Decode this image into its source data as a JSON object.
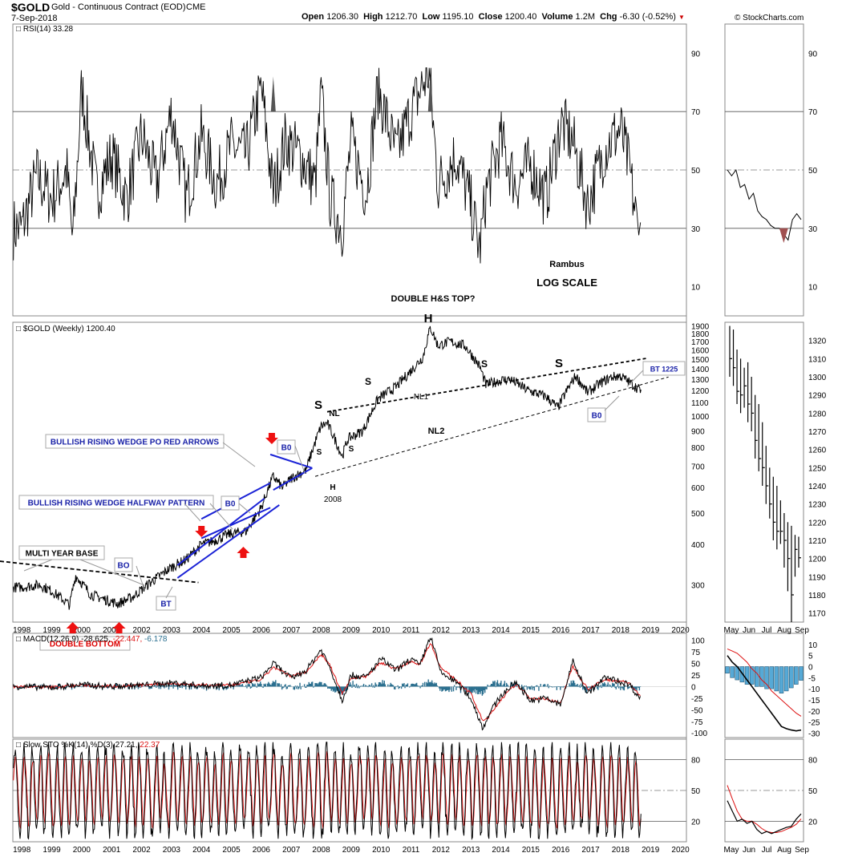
{
  "header": {
    "symbol": "$GOLD",
    "name": "Gold - Continuous Contract (EOD)",
    "exchange": "CME",
    "date": "7-Sep-2018",
    "open_label": "Open",
    "open": "1206.30",
    "high_label": "High",
    "high": "1212.70",
    "low_label": "Low",
    "low": "1195.10",
    "close_label": "Close",
    "close": "1200.40",
    "volume_label": "Volume",
    "volume": "1.2M",
    "chg_label": "Chg",
    "chg": "-6.30 (-0.52%)",
    "watermark": "© StockCharts.com"
  },
  "colors": {
    "price": "#000000",
    "trendline_blue": "#1a22d6",
    "arrow_red": "#ee1111",
    "macd_signal": "#dd1111",
    "macd_hist": "#2a6f8f",
    "hist_light": "#56a9d6",
    "rsi_fill": "#555555",
    "annotation_blue": "#1a22a8",
    "grid": "#999999"
  },
  "chart_data": [
    {
      "type": "line",
      "panel": "rsi",
      "title": "RSI(14) 33.28",
      "series_name": "RSI(14)",
      "last_value": 33.28,
      "ylim": [
        0,
        100
      ],
      "y_ticks": [
        10,
        30,
        50,
        70,
        90
      ],
      "reference_lines": [
        30,
        50,
        70
      ],
      "x": [
        1998.0,
        1998.5,
        1999.0,
        1999.5,
        1999.7,
        2000.0,
        2000.5,
        2001.0,
        2001.5,
        2002.0,
        2002.5,
        2003.0,
        2003.5,
        2004.0,
        2004.5,
        2005.0,
        2005.5,
        2006.0,
        2006.4,
        2006.8,
        2007.3,
        2007.8,
        2008.0,
        2008.3,
        2008.7,
        2009.0,
        2009.5,
        2009.9,
        2010.5,
        2011.0,
        2011.6,
        2011.9,
        2012.5,
        2013.0,
        2013.3,
        2013.5,
        2014.0,
        2014.5,
        2015.0,
        2015.5,
        2016.0,
        2016.4,
        2016.9,
        2017.5,
        2018.0,
        2018.3,
        2018.6,
        2018.68
      ],
      "values": [
        30,
        48,
        40,
        50,
        25,
        78,
        42,
        55,
        40,
        62,
        45,
        70,
        40,
        62,
        45,
        58,
        55,
        78,
        42,
        60,
        55,
        45,
        76,
        40,
        30,
        60,
        42,
        78,
        55,
        70,
        84,
        45,
        55,
        38,
        22,
        42,
        60,
        45,
        52,
        40,
        66,
        60,
        38,
        58,
        64,
        50,
        27,
        33.28
      ]
    },
    {
      "type": "line",
      "panel": "price",
      "title": "$GOLD (Weekly) 1200.40",
      "series_name": "$GOLD (Weekly)",
      "last_value": 1200.4,
      "scale": "log",
      "ylim": [
        230,
        1950
      ],
      "y_ticks": [
        300,
        400,
        500,
        600,
        700,
        800,
        900,
        1000,
        1100,
        1200,
        1300,
        1400,
        1500,
        1600,
        1700,
        1800,
        1900
      ],
      "x_ticks": [
        1998,
        1999,
        2000,
        2001,
        2002,
        2003,
        2004,
        2005,
        2006,
        2007,
        2008,
        2009,
        2010,
        2011,
        2012,
        2013,
        2014,
        2015,
        2016,
        2017,
        2018,
        2019,
        2020
      ],
      "x": [
        1998.0,
        1998.6,
        1999.0,
        1999.6,
        1999.8,
        2000.3,
        2000.8,
        2001.2,
        2001.7,
        2002.0,
        2002.5,
        2003.0,
        2003.5,
        2004.0,
        2004.4,
        2004.9,
        2005.5,
        2006.0,
        2006.4,
        2006.7,
        2007.0,
        2007.5,
        2008.0,
        2008.2,
        2008.7,
        2008.9,
        2009.4,
        2009.9,
        2010.5,
        2011.0,
        2011.4,
        2011.65,
        2011.9,
        2012.3,
        2012.8,
        2013.3,
        2013.5,
        2014.0,
        2014.3,
        2014.9,
        2015.5,
        2015.9,
        2016.5,
        2016.9,
        2017.3,
        2017.7,
        2018.0,
        2018.4,
        2018.68
      ],
      "values": [
        295,
        300,
        287,
        260,
        320,
        280,
        270,
        262,
        275,
        290,
        315,
        340,
        360,
        400,
        410,
        430,
        440,
        520,
        650,
        600,
        640,
        680,
        930,
        950,
        750,
        850,
        900,
        1130,
        1230,
        1380,
        1520,
        1880,
        1650,
        1700,
        1650,
        1420,
        1250,
        1290,
        1300,
        1200,
        1150,
        1060,
        1330,
        1180,
        1260,
        1320,
        1330,
        1250,
        1200.4
      ]
    },
    {
      "type": "line",
      "panel": "macd",
      "title": "MACD(12,26,9) -28.625, -22.447, -6.178",
      "macd_value": -28.625,
      "signal_value": -22.447,
      "hist_value": -6.178,
      "ylim": [
        -110,
        115
      ],
      "y_ticks": [
        -100,
        -75,
        -50,
        -25,
        0,
        25,
        50,
        75,
        100
      ],
      "x": [
        1998.0,
        1999.0,
        2000.0,
        2001.0,
        2002.0,
        2003.0,
        2004.0,
        2005.0,
        2006.0,
        2006.4,
        2007.0,
        2007.5,
        2008.0,
        2008.3,
        2008.7,
        2009.0,
        2009.5,
        2010.0,
        2010.5,
        2011.0,
        2011.3,
        2011.65,
        2012.0,
        2012.5,
        2013.0,
        2013.4,
        2013.6,
        2014.0,
        2014.5,
        2015.0,
        2015.5,
        2016.0,
        2016.4,
        2016.9,
        2017.5,
        2018.0,
        2018.3,
        2018.68
      ],
      "macd": [
        0,
        -2,
        4,
        0,
        3,
        8,
        2,
        3,
        20,
        50,
        18,
        35,
        80,
        40,
        -30,
        25,
        20,
        60,
        35,
        60,
        45,
        110,
        30,
        10,
        -25,
        -90,
        -60,
        -20,
        10,
        -30,
        -25,
        -40,
        55,
        -15,
        20,
        10,
        5,
        -28.625
      ],
      "signal": [
        0,
        -1,
        3,
        1,
        3,
        7,
        3,
        3,
        15,
        42,
        22,
        32,
        70,
        45,
        -15,
        18,
        22,
        52,
        38,
        55,
        48,
        95,
        40,
        15,
        -15,
        -75,
        -65,
        -28,
        5,
        -25,
        -27,
        -35,
        45,
        -5,
        15,
        12,
        7,
        -22.447
      ]
    },
    {
      "type": "line",
      "panel": "stochastic",
      "title": "Slow STO %K(14) %D(3) 27.21, 22.37",
      "k_value": 27.21,
      "d_value": 22.37,
      "ylim": [
        0,
        100
      ],
      "y_ticks": [
        20,
        50,
        80
      ],
      "reference_lines": [
        20,
        50,
        80
      ],
      "x_ticks": [
        1998,
        1999,
        2000,
        2001,
        2002,
        2003,
        2004,
        2005,
        2006,
        2007,
        2008,
        2009,
        2010,
        2011,
        2012,
        2013,
        2014,
        2015,
        2016,
        2017,
        2018,
        2019,
        2020
      ],
      "x_range": [
        1997.7,
        2020.2
      ],
      "last_x": 2018.68
    },
    {
      "type": "bar",
      "panel": "mini-price",
      "title": "",
      "ylim": [
        1165,
        1330
      ],
      "y_ticks": [
        1170,
        1180,
        1190,
        1200,
        1210,
        1220,
        1230,
        1240,
        1250,
        1260,
        1270,
        1280,
        1290,
        1300,
        1310,
        1320
      ],
      "x_ticks": [
        "May",
        "Jun",
        "Jul",
        "Aug",
        "Sep"
      ],
      "high": [
        1328,
        1326,
        1315,
        1310,
        1305,
        1308,
        1300,
        1290,
        1285,
        1275,
        1262,
        1250,
        1245,
        1240,
        1232,
        1225,
        1220,
        1218,
        1213,
        1212
      ],
      "low": [
        1300,
        1295,
        1285,
        1280,
        1283,
        1275,
        1270,
        1255,
        1248,
        1240,
        1230,
        1222,
        1210,
        1205,
        1208,
        1195,
        1182,
        1165,
        1190,
        1195
      ],
      "close": [
        1310,
        1305,
        1292,
        1290,
        1295,
        1285,
        1280,
        1265,
        1255,
        1250,
        1240,
        1230,
        1220,
        1215,
        1215,
        1210,
        1200,
        1180,
        1205,
        1200.4
      ]
    },
    {
      "type": "line",
      "panel": "mini-rsi",
      "title": "",
      "ylim": [
        0,
        100
      ],
      "y_ticks": [
        10,
        30,
        50,
        70,
        90
      ],
      "values": [
        50,
        48,
        50,
        44,
        45,
        40,
        42,
        36,
        34,
        33,
        31,
        30,
        30,
        28,
        26,
        33,
        35,
        33
      ]
    },
    {
      "type": "line",
      "panel": "mini-macd",
      "title": "",
      "ylim": [
        -32,
        15
      ],
      "y_ticks": [
        -30,
        -25,
        -20,
        -15,
        -10,
        -5,
        0,
        5,
        10
      ],
      "macd": [
        5,
        2,
        0,
        -3,
        -6,
        -9,
        -12,
        -15,
        -18,
        -21,
        -24,
        -27,
        -28,
        -28.6,
        -29,
        -28.6
      ],
      "signal": [
        8,
        7,
        6,
        4,
        2,
        -1,
        -3,
        -6,
        -8,
        -11,
        -13,
        -15,
        -17,
        -19,
        -21,
        -22.4
      ]
    },
    {
      "type": "line",
      "panel": "mini-stochastic",
      "title": "",
      "ylim": [
        0,
        100
      ],
      "y_ticks": [
        20,
        50,
        80
      ],
      "k": [
        40,
        30,
        20,
        22,
        18,
        20,
        12,
        8,
        10,
        8,
        10,
        12,
        14,
        15,
        22,
        27.21
      ],
      "d": [
        55,
        42,
        30,
        22,
        20,
        20,
        17,
        13,
        10,
        9,
        9,
        10,
        12,
        14,
        17,
        22.37
      ]
    }
  ],
  "annotations": {
    "rambus": "Rambus",
    "log_scale": "LOG SCALE",
    "double_hs": "DOUBLE H&S TOP?",
    "H": "H",
    "S": "S",
    "NL": "NL",
    "NL1": "NL1",
    "NL2": "NL2",
    "H2008": "H",
    "y2008": "2008",
    "wedge_po": "BULLISH RISING WEDGE  PO RED ARROWS",
    "wedge_half": "BULLISH RISING WEDGE HALFWAY PATTERN",
    "multi_year": "MULTI YEAR BASE",
    "double_bottom": "DOUBLE BOTTOM",
    "BO": "BO",
    "B0": "B0",
    "BT": "BT",
    "BT1225": "BT 1225"
  }
}
